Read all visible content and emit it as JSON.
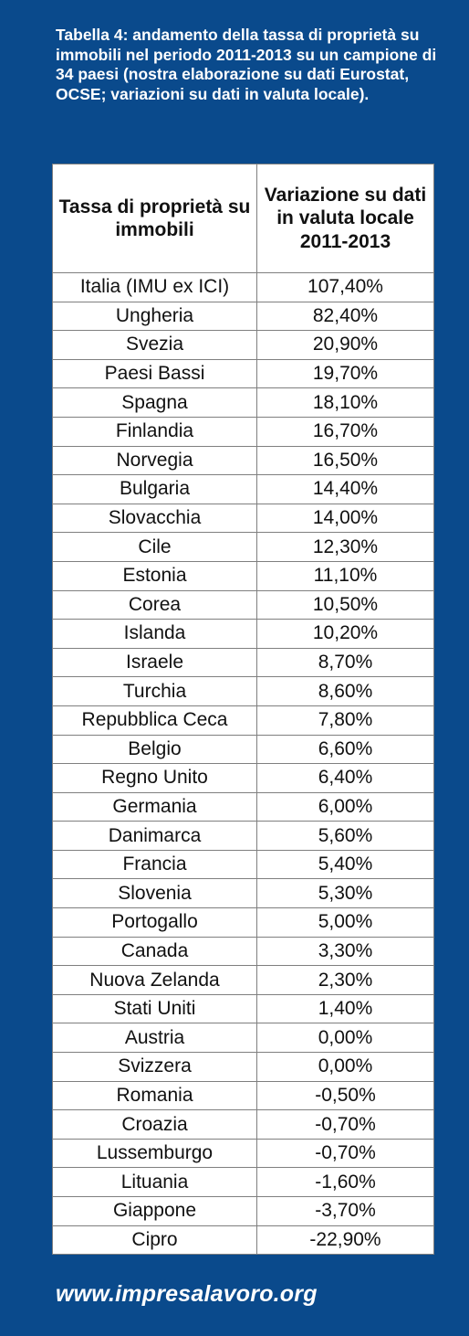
{
  "caption": "Tabella 4: andamento della tassa di proprietà su immobili nel periodo 2011-2013 su un campione di 34 paesi (nostra elaborazione su dati Eurostat, OCSE; variazioni su dati in valuta locale).",
  "table": {
    "headers": [
      "Tassa di proprietà su immobili",
      "Variazione su dati in valuta locale 2011-2013"
    ],
    "rows": [
      [
        "Italia (IMU ex ICI)",
        "107,40%"
      ],
      [
        "Ungheria",
        "82,40%"
      ],
      [
        "Svezia",
        "20,90%"
      ],
      [
        "Paesi Bassi",
        "19,70%"
      ],
      [
        "Spagna",
        "18,10%"
      ],
      [
        "Finlandia",
        "16,70%"
      ],
      [
        "Norvegia",
        "16,50%"
      ],
      [
        "Bulgaria",
        "14,40%"
      ],
      [
        "Slovacchia",
        "14,00%"
      ],
      [
        "Cile",
        "12,30%"
      ],
      [
        "Estonia",
        "11,10%"
      ],
      [
        "Corea",
        "10,50%"
      ],
      [
        "Islanda",
        "10,20%"
      ],
      [
        "Israele",
        "8,70%"
      ],
      [
        "Turchia",
        "8,60%"
      ],
      [
        "Repubblica Ceca",
        "7,80%"
      ],
      [
        "Belgio",
        "6,60%"
      ],
      [
        "Regno Unito",
        "6,40%"
      ],
      [
        "Germania",
        "6,00%"
      ],
      [
        "Danimarca",
        "5,60%"
      ],
      [
        "Francia",
        "5,40%"
      ],
      [
        "Slovenia",
        "5,30%"
      ],
      [
        "Portogallo",
        "5,00%"
      ],
      [
        "Canada",
        "3,30%"
      ],
      [
        "Nuova Zelanda",
        "2,30%"
      ],
      [
        "Stati Uniti",
        "1,40%"
      ],
      [
        "Austria",
        "0,00%"
      ],
      [
        "Svizzera",
        "0,00%"
      ],
      [
        "Romania",
        "-0,50%"
      ],
      [
        "Croazia",
        "-0,70%"
      ],
      [
        "Lussemburgo",
        "-0,70%"
      ],
      [
        "Lituania",
        "-1,60%"
      ],
      [
        "Giappone",
        "-3,70%"
      ],
      [
        "Cipro",
        "-22,90%"
      ]
    ]
  },
  "footer": "www.impresalavoro.org",
  "colors": {
    "background": "#0a4a8c",
    "table_background": "#ffffff",
    "text_light": "#ffffff"
  }
}
